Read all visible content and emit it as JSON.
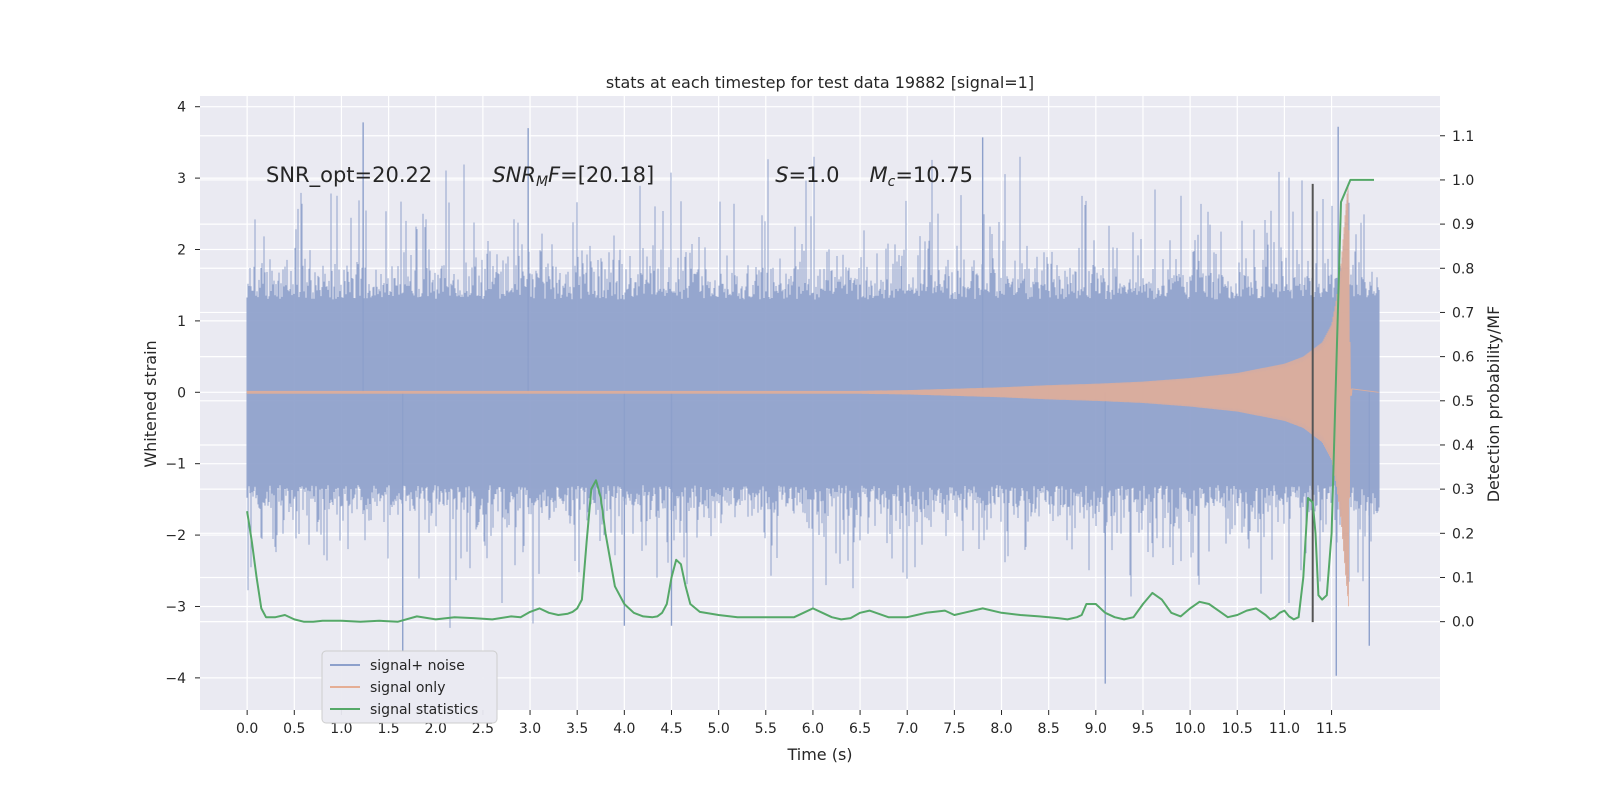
{
  "chart_data": {
    "type": "line",
    "title": "stats at each timestep for test data 19882 [signal=1]",
    "xlabel": "Time (s)",
    "ylabel": "Whitened strain",
    "y2label": "Detection probability/MF",
    "xlim": [
      -0.5,
      12.65
    ],
    "ylim": [
      -4.45,
      4.15
    ],
    "y2lim": [
      -0.2,
      1.19
    ],
    "xticks": [
      0.0,
      0.5,
      1.0,
      1.5,
      2.0,
      2.5,
      3.0,
      3.5,
      4.0,
      4.5,
      5.0,
      5.5,
      6.0,
      6.5,
      7.0,
      7.5,
      8.0,
      8.5,
      9.0,
      9.5,
      10.0,
      10.5,
      11.0,
      11.5
    ],
    "xticklabels": [
      "0.0",
      "0.5",
      "1.0",
      "1.5",
      "2.0",
      "2.5",
      "3.0",
      "3.5",
      "4.0",
      "4.5",
      "5.0",
      "5.5",
      "6.0",
      "6.5",
      "7.0",
      "7.5",
      "8.0",
      "8.5",
      "9.0",
      "9.5",
      "10.0",
      "10.5",
      "11.0",
      "11.5"
    ],
    "yticks": [
      -4,
      -3,
      -2,
      -1,
      0,
      1,
      2,
      3,
      4
    ],
    "yticklabels": [
      "−4",
      "−3",
      "−2",
      "−1",
      "0",
      "1",
      "2",
      "3",
      "4"
    ],
    "y2ticks": [
      0.0,
      0.1,
      0.2,
      0.3,
      0.4,
      0.5,
      0.6,
      0.7,
      0.8,
      0.9,
      1.0,
      1.1
    ],
    "y2ticklabels": [
      "0.0",
      "0.1",
      "0.2",
      "0.3",
      "0.4",
      "0.5",
      "0.6",
      "0.7",
      "0.8",
      "0.9",
      "1.0",
      "1.1"
    ],
    "annotations": [
      {
        "id": "snr-opt",
        "x": 0.2,
        "y": 3.0,
        "text": "SNR_opt=20.22"
      },
      {
        "id": "snr-mf",
        "x": 2.6,
        "y": 3.0,
        "segments": [
          {
            "t": "SNR",
            "style": "italic"
          },
          {
            "t": "M",
            "style": "italic-sub"
          },
          {
            "t": "F",
            "style": "italic"
          },
          {
            "t": "=[20.18]",
            "style": "normal"
          }
        ]
      },
      {
        "id": "s-value",
        "x": 5.6,
        "y": 3.0,
        "segments": [
          {
            "t": "S",
            "style": "italic"
          },
          {
            "t": "=1.0",
            "style": "normal"
          }
        ]
      },
      {
        "id": "chirp-mass",
        "x": 6.6,
        "y": 3.0,
        "segments": [
          {
            "t": "M",
            "style": "italic"
          },
          {
            "t": "c",
            "style": "italic-sub"
          },
          {
            "t": "=10.75",
            "style": "normal"
          }
        ]
      }
    ],
    "vline": {
      "x": 11.3,
      "y_from": -3.22,
      "y_to": 2.92,
      "color": "#555555"
    },
    "series": [
      {
        "name": "signal+ noise",
        "color": "#8da0cb",
        "kind": "noise-envelope",
        "t_start": 0.0,
        "t_end": 12.0,
        "core_amplitude": 1.3,
        "notable_peaks": [
          {
            "x": 1.23,
            "y": 3.78
          },
          {
            "x": 2.98,
            "y": 3.7
          },
          {
            "x": 7.8,
            "y": 3.57
          },
          {
            "x": 11.57,
            "y": 3.72
          },
          {
            "x": 1.65,
            "y": -3.63
          },
          {
            "x": 9.1,
            "y": -4.08
          },
          {
            "x": 11.55,
            "y": -3.97
          },
          {
            "x": 11.9,
            "y": -3.55
          },
          {
            "x": 4.0,
            "y": -3.27
          },
          {
            "x": 4.5,
            "y": -3.27
          }
        ]
      },
      {
        "name": "signal only",
        "color": "#e5ae95",
        "kind": "chirp-envelope",
        "x": [
          0.0,
          6.5,
          7.0,
          7.5,
          8.0,
          8.5,
          9.0,
          9.5,
          10.0,
          10.5,
          11.0,
          11.2,
          11.4,
          11.5,
          11.55,
          11.6,
          11.65,
          11.68,
          11.7,
          12.0
        ],
        "amplitude": [
          0.02,
          0.02,
          0.03,
          0.05,
          0.07,
          0.1,
          0.12,
          0.15,
          0.2,
          0.27,
          0.4,
          0.5,
          0.7,
          0.95,
          1.3,
          1.8,
          2.6,
          3.0,
          0.05,
          0.0
        ]
      },
      {
        "name": "signal statistics",
        "color": "#55a868",
        "axis": "right",
        "x": [
          0.0,
          0.05,
          0.1,
          0.15,
          0.2,
          0.3,
          0.4,
          0.5,
          0.6,
          0.7,
          0.8,
          1.0,
          1.2,
          1.4,
          1.6,
          1.8,
          2.0,
          2.2,
          2.4,
          2.6,
          2.8,
          2.9,
          3.0,
          3.1,
          3.2,
          3.3,
          3.4,
          3.45,
          3.5,
          3.55,
          3.6,
          3.65,
          3.7,
          3.75,
          3.8,
          3.9,
          4.0,
          4.1,
          4.2,
          4.3,
          4.35,
          4.4,
          4.45,
          4.5,
          4.55,
          4.6,
          4.65,
          4.7,
          4.8,
          5.0,
          5.2,
          5.4,
          5.6,
          5.8,
          5.9,
          6.0,
          6.1,
          6.2,
          6.3,
          6.4,
          6.5,
          6.6,
          6.8,
          7.0,
          7.1,
          7.2,
          7.4,
          7.5,
          7.6,
          7.8,
          8.0,
          8.2,
          8.4,
          8.6,
          8.7,
          8.8,
          8.85,
          8.9,
          9.0,
          9.1,
          9.2,
          9.3,
          9.4,
          9.5,
          9.6,
          9.7,
          9.8,
          9.9,
          10.0,
          10.1,
          10.2,
          10.3,
          10.4,
          10.5,
          10.6,
          10.7,
          10.8,
          10.85,
          10.9,
          10.95,
          11.0,
          11.05,
          11.1,
          11.15,
          11.2,
          11.25,
          11.3,
          11.33,
          11.36,
          11.4,
          11.45,
          11.5,
          11.6,
          11.7,
          11.8,
          11.9,
          11.95
        ],
        "values": [
          0.25,
          0.18,
          0.1,
          0.03,
          0.01,
          0.01,
          0.015,
          0.005,
          0.0,
          0.0,
          0.002,
          0.002,
          0.0,
          0.002,
          0.0,
          0.012,
          0.005,
          0.01,
          0.008,
          0.005,
          0.012,
          0.01,
          0.022,
          0.03,
          0.02,
          0.015,
          0.018,
          0.022,
          0.03,
          0.05,
          0.18,
          0.3,
          0.32,
          0.28,
          0.2,
          0.08,
          0.04,
          0.02,
          0.012,
          0.01,
          0.012,
          0.02,
          0.04,
          0.1,
          0.14,
          0.13,
          0.08,
          0.04,
          0.022,
          0.015,
          0.01,
          0.01,
          0.01,
          0.01,
          0.02,
          0.03,
          0.02,
          0.01,
          0.005,
          0.008,
          0.02,
          0.025,
          0.01,
          0.01,
          0.015,
          0.02,
          0.025,
          0.015,
          0.02,
          0.03,
          0.02,
          0.015,
          0.012,
          0.008,
          0.005,
          0.01,
          0.015,
          0.04,
          0.04,
          0.02,
          0.01,
          0.005,
          0.01,
          0.04,
          0.065,
          0.05,
          0.02,
          0.012,
          0.03,
          0.045,
          0.04,
          0.025,
          0.01,
          0.015,
          0.025,
          0.03,
          0.015,
          0.005,
          0.01,
          0.02,
          0.025,
          0.012,
          0.005,
          0.01,
          0.1,
          0.28,
          0.27,
          0.2,
          0.06,
          0.05,
          0.06,
          0.2,
          0.95,
          1.0,
          1.0,
          1.0,
          1.0
        ]
      }
    ],
    "legend": {
      "placement": "lower-left",
      "entries": [
        "signal+ noise",
        "signal only",
        "signal statistics"
      ]
    },
    "grid": true,
    "style": {
      "background": "#ffffff",
      "plot_bg": "#eaeaf2",
      "grid_color": "#ffffff"
    }
  }
}
